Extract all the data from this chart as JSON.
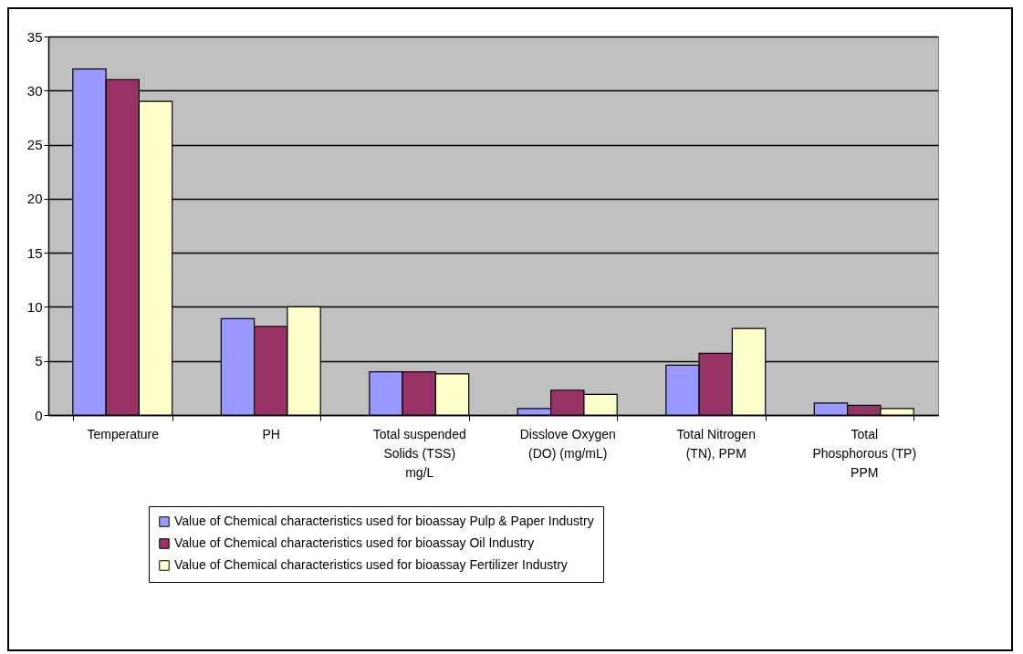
{
  "chart_data": {
    "type": "bar",
    "categories": [
      "Temperature",
      "PH",
      "Total suspended Solids (TSS) mg/L",
      "Disslove Oxygen (DO) (mg/mL)",
      "Total Nitrogen (TN), PPM",
      "Total Phosphorous (TP) PPM"
    ],
    "series": [
      {
        "name": "Value of Chemical characteristics used for bioassay Pulp & Paper Industry",
        "color": "#9999ff",
        "values": [
          32,
          8.9,
          4,
          0.6,
          4.6,
          1.1
        ]
      },
      {
        "name": "Value of Chemical characteristics used for bioassay Oil Industry",
        "color": "#993366",
        "values": [
          31,
          8.2,
          4,
          2.3,
          5.7,
          0.9
        ]
      },
      {
        "name": "Value of Chemical characteristics used for bioassay Fertilizer Industry",
        "color": "#ffffcc",
        "values": [
          29,
          10,
          3.8,
          1.9,
          8,
          0.6
        ]
      }
    ],
    "ylim": [
      0,
      35
    ],
    "yticks": [
      0,
      5,
      10,
      15,
      20,
      25,
      30,
      35
    ],
    "grid": "y",
    "legend": "bottom"
  }
}
